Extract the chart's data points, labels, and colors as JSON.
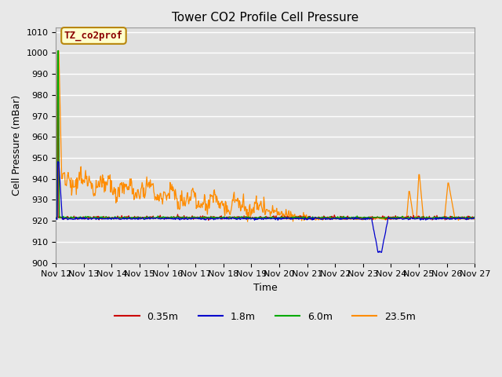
{
  "title": "Tower CO2 Profile Cell Pressure",
  "ylabel": "Cell Pressure (mBar)",
  "xlabel": "Time",
  "ylim": [
    900,
    1012
  ],
  "yticks": [
    900,
    910,
    920,
    930,
    940,
    950,
    960,
    970,
    980,
    990,
    1000,
    1010
  ],
  "xtick_labels": [
    "Nov 12",
    "Nov 13",
    "Nov 14",
    "Nov 15",
    "Nov 16",
    "Nov 17",
    "Nov 18",
    "Nov 19",
    "Nov 20",
    "Nov 21",
    "Nov 22",
    "Nov 23",
    "Nov 24",
    "Nov 25",
    "Nov 26",
    "Nov 27"
  ],
  "annotation_text": "TZ_co2prof",
  "annotation_color": "#8B0000",
  "annotation_bg": "#FFFFCC",
  "annotation_border": "#B8860B",
  "fig_bg_color": "#E8E8E8",
  "plot_bg_color": "#E0E0E0",
  "legend_entries": [
    "0.35m",
    "1.8m",
    "6.0m",
    "23.5m"
  ],
  "line_colors": [
    "#CC0000",
    "#0000CC",
    "#00AA00",
    "#FF8C00"
  ],
  "grid_color": "#FFFFFF",
  "title_fontsize": 11,
  "label_fontsize": 9,
  "tick_fontsize": 8
}
